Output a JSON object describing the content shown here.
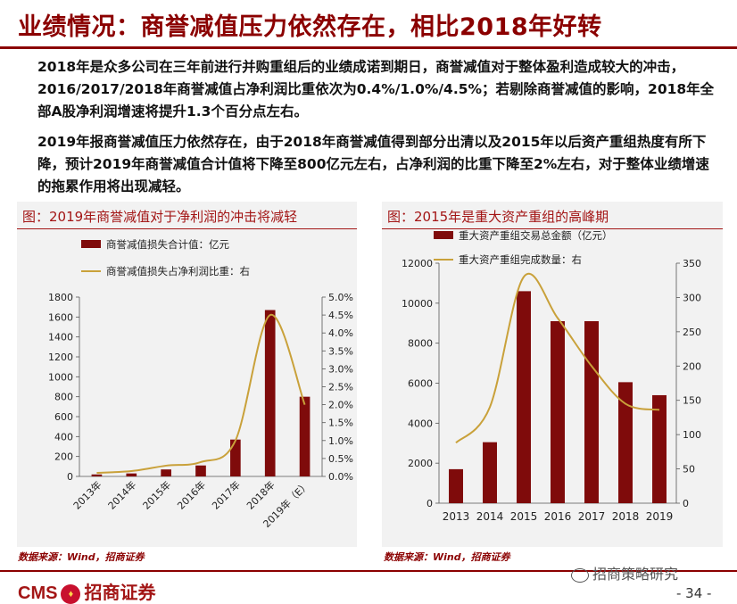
{
  "page": {
    "title": "业绩情况：商誉减值压力依然存在，相比2018年好转",
    "paragraph1": "2018年是众多公司在三年前进行并购重组后的业绩成诺到期日，商誉减值对于整体盈利造成较大的冲击，2016/2017/2018年商誉减值占净利润比重依次为0.4%/1.0%/4.5%；若剔除商誉减值的影响，2018年全部A股净利润增速将提升1.3个百分点左右。",
    "paragraph2": "2019年报商誉减值压力依然存在，由于2018年商誉减值得到部分出清以及2015年以后资产重组热度有所下降，预计2019年商誉减值合计值将下降至800亿元左右，占净利润的比重下降至2%左右，对于整体业绩增速的拖累作用将出现减轻。",
    "source_left": "数据来源：Wind，招商证券",
    "source_right": "数据来源：Wind，招商证券",
    "logo_cms": "CMS",
    "logo_name": "招商证券",
    "watermark": "招商策略研究",
    "page_number": "- 34 -",
    "colors": {
      "brand": "#8b0000",
      "bar": "#7f0b0b",
      "line": "#c9a13a"
    }
  },
  "chart_data": [
    {
      "type": "bar",
      "panel_title": "图：2019年商誉减值对于净利润的冲击将减轻",
      "categories": [
        "2013年",
        "2014年",
        "2015年",
        "2016年",
        "2017年",
        "2018年",
        "2019年（E）"
      ],
      "series": [
        {
          "name": "商誉减值损失合计值：亿元",
          "kind": "bar",
          "axis": "left",
          "values": [
            20,
            30,
            70,
            110,
            370,
            1670,
            800
          ]
        },
        {
          "name": "商誉减值损失占净利润比重：右",
          "kind": "line",
          "axis": "right",
          "values": [
            0.001,
            0.0015,
            0.003,
            0.004,
            0.01,
            0.045,
            0.02
          ]
        }
      ],
      "ylim_left": [
        0,
        1800
      ],
      "yticks_left": [
        "0",
        "200",
        "400",
        "600",
        "800",
        "1000",
        "1200",
        "1400",
        "1600",
        "1800"
      ],
      "ylim_right": [
        0,
        0.05
      ],
      "yticks_right": [
        "0.0%",
        "0.5%",
        "1.0%",
        "1.5%",
        "2.0%",
        "2.5%",
        "3.0%",
        "3.5%",
        "4.0%",
        "4.5%",
        "5.0%"
      ],
      "legend": "top-left",
      "grid": false
    },
    {
      "type": "bar",
      "panel_title": "图：2015年是重大资产重组的高峰期",
      "categories": [
        "2013",
        "2014",
        "2015",
        "2016",
        "2017",
        "2018",
        "2019"
      ],
      "series": [
        {
          "name": "重大资产重组交易总金额（亿元）",
          "kind": "bar",
          "axis": "left",
          "values": [
            1700,
            3050,
            10600,
            9100,
            9100,
            6050,
            5400
          ]
        },
        {
          "name": "重大资产重组完成数量：右",
          "kind": "line",
          "axis": "right",
          "values": [
            88,
            140,
            330,
            270,
            200,
            145,
            136
          ]
        }
      ],
      "ylim_left": [
        0,
        12000
      ],
      "yticks_left": [
        "0",
        "2000",
        "4000",
        "6000",
        "8000",
        "10000",
        "12000"
      ],
      "ylim_right": [
        0,
        350
      ],
      "yticks_right": [
        "0",
        "50",
        "100",
        "150",
        "200",
        "250",
        "300",
        "350"
      ],
      "legend": "top-left",
      "grid": false
    }
  ]
}
